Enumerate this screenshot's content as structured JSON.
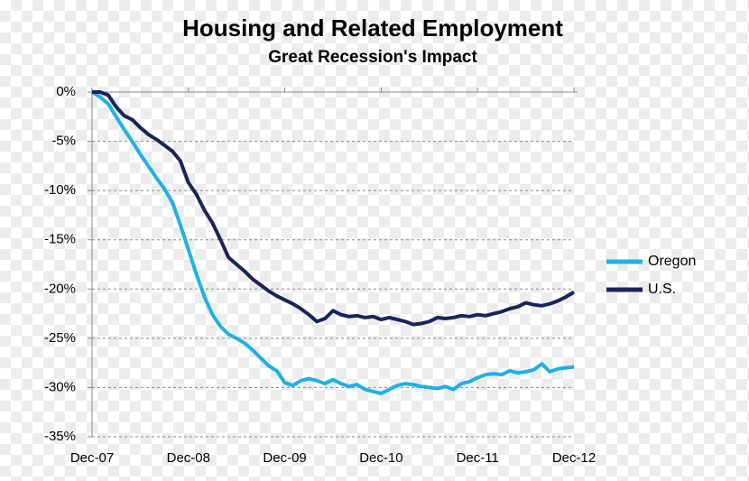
{
  "chart_data": {
    "type": "line",
    "title": "Housing and Related Employment",
    "subtitle": "Great Recession's Impact",
    "categories": [
      "Dec-07",
      null,
      null,
      null,
      null,
      null,
      null,
      null,
      null,
      null,
      null,
      null,
      "Dec-08",
      null,
      null,
      null,
      null,
      null,
      null,
      null,
      null,
      null,
      null,
      null,
      "Dec-09",
      null,
      null,
      null,
      null,
      null,
      null,
      null,
      null,
      null,
      null,
      null,
      "Dec-10",
      null,
      null,
      null,
      null,
      null,
      null,
      null,
      null,
      null,
      null,
      null,
      "Dec-11",
      null,
      null,
      null,
      null,
      null,
      null,
      null,
      null,
      null,
      null,
      null,
      "Dec-12"
    ],
    "series": [
      {
        "name": "Oregon",
        "color": "#1fb1e6",
        "values": [
          0,
          -0.5,
          -1.2,
          -2.5,
          -3.8,
          -5,
          -6.3,
          -7.5,
          -8.7,
          -9.8,
          -11.2,
          -13.5,
          -16,
          -18.5,
          -20.8,
          -22.6,
          -23.8,
          -24.6,
          -25,
          -25.5,
          -26.2,
          -27,
          -27.8,
          -28.3,
          -29.5,
          -29.8,
          -29.3,
          -29.1,
          -29.3,
          -29.6,
          -29.2,
          -29.6,
          -29.9,
          -29.7,
          -30.2,
          -30.4,
          -30.6,
          -30.2,
          -29.8,
          -29.6,
          -29.7,
          -29.9,
          -30,
          -30.1,
          -29.9,
          -30.2,
          -29.6,
          -29.4,
          -29,
          -28.7,
          -28.6,
          -28.7,
          -28.3,
          -28.5,
          -28.4,
          -28.2,
          -27.6,
          -28.4,
          -28.1,
          -28,
          -27.9
        ]
      },
      {
        "name": "U.S.",
        "color": "#18255a",
        "values": [
          0,
          0,
          -0.3,
          -1.5,
          -2.4,
          -2.8,
          -3.6,
          -4.3,
          -4.8,
          -5.4,
          -6,
          -7,
          -9.2,
          -10.4,
          -12,
          -13.3,
          -15,
          -16.8,
          -17.5,
          -18.2,
          -19,
          -19.6,
          -20.2,
          -20.7,
          -21.1,
          -21.5,
          -22,
          -22.6,
          -23.3,
          -23,
          -22.2,
          -22.6,
          -22.8,
          -22.7,
          -22.9,
          -22.8,
          -23.1,
          -22.9,
          -23.1,
          -23.3,
          -23.6,
          -23.5,
          -23.3,
          -22.9,
          -23,
          -22.9,
          -22.7,
          -22.8,
          -22.6,
          -22.7,
          -22.5,
          -22.3,
          -22,
          -21.8,
          -21.4,
          -21.6,
          -21.7,
          -21.5,
          -21.2,
          -20.8,
          -20.3
        ]
      }
    ],
    "ylim": [
      -35,
      0
    ],
    "yticks": [
      {
        "value": 0,
        "label": "0%"
      },
      {
        "value": -5,
        "label": "-5%"
      },
      {
        "value": -10,
        "label": "-10%"
      },
      {
        "value": -15,
        "label": "-15%"
      },
      {
        "value": -20,
        "label": "-20%"
      },
      {
        "value": -25,
        "label": "-25%"
      },
      {
        "value": -30,
        "label": "-30%"
      },
      {
        "value": -35,
        "label": "-35%"
      }
    ],
    "grid": true,
    "legend": "right"
  }
}
